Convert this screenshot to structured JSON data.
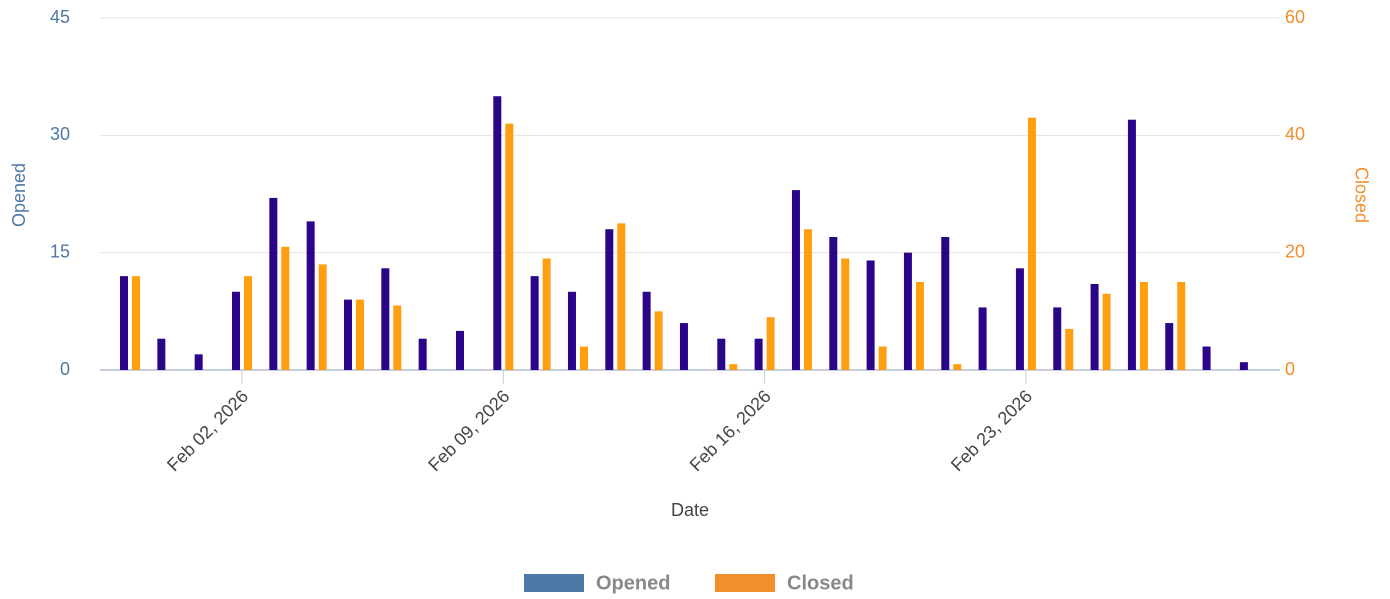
{
  "chart_data": {
    "type": "bar",
    "x_label": "Date",
    "categories": [
      null,
      null,
      null,
      "Feb 02, 2026",
      null,
      null,
      null,
      null,
      null,
      null,
      "Feb 09, 2026",
      null,
      null,
      null,
      null,
      null,
      null,
      "Feb 16, 2026",
      null,
      null,
      null,
      null,
      null,
      null,
      "Feb 23, 2026",
      null,
      null,
      null,
      null,
      null,
      null
    ],
    "y_label": "Opened",
    "y2_label": "Closed",
    "ylim": [
      0,
      45
    ],
    "yticks": [
      0,
      15,
      30,
      45
    ],
    "y2lim": [
      0,
      60
    ],
    "y2ticks": [
      0,
      20,
      40,
      60
    ],
    "grid": true,
    "legend": "bottom",
    "series": [
      {
        "name": "Opened",
        "color": "#2b0589",
        "legend_color": "#4e79a7",
        "axis": "y",
        "values": [
          12,
          4,
          2,
          10,
          22,
          19,
          9,
          13,
          4,
          5,
          35,
          12,
          10,
          18,
          10,
          6,
          4,
          4,
          23,
          17,
          14,
          15,
          17,
          8,
          13,
          8,
          11,
          32,
          6,
          3,
          1
        ]
      },
      {
        "name": "Closed",
        "color": "#ff9f10",
        "legend_color": "#f28e2b",
        "axis": "y2",
        "values": [
          16,
          0,
          0,
          16,
          21,
          18,
          12,
          11,
          0,
          0,
          42,
          19,
          4,
          25,
          10,
          0,
          1,
          9,
          24,
          19,
          4,
          15,
          1,
          0,
          43,
          7,
          13,
          15,
          15,
          0,
          0
        ]
      }
    ]
  }
}
